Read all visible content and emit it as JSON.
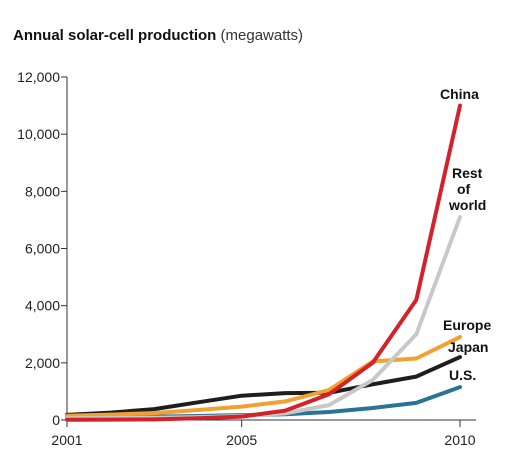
{
  "chart_data": {
    "type": "line",
    "title": "Annual solar-cell production",
    "title_unit": "(megawatts)",
    "x": [
      2001,
      2002,
      2003,
      2004,
      2005,
      2006,
      2007,
      2008,
      2009,
      2010
    ],
    "xticks": [
      "2001",
      "2005",
      "2010"
    ],
    "yticks": [
      "0",
      "2,000",
      "4,000",
      "6,000",
      "8,000",
      "10,000",
      "12,000"
    ],
    "ylim": [
      0,
      12000
    ],
    "xlim": [
      2001,
      2010
    ],
    "grid": false,
    "series": [
      {
        "name": "U.S.",
        "color": "#2a7396",
        "values": [
          100,
          110,
          120,
          140,
          170,
          200,
          280,
          420,
          600,
          1150
        ]
      },
      {
        "name": "Japan",
        "color": "#1e1e1e",
        "values": [
          180,
          260,
          380,
          620,
          850,
          940,
          950,
          1250,
          1520,
          2200
        ]
      },
      {
        "name": "Europe",
        "color": "#f2a030",
        "values": [
          150,
          190,
          240,
          350,
          470,
          650,
          1050,
          2050,
          2150,
          2900
        ]
      },
      {
        "name": "Rest of world",
        "label_lines": [
          "Rest",
          "of",
          "world"
        ],
        "color": "#c8c8c8",
        "values": [
          60,
          70,
          80,
          100,
          140,
          230,
          520,
          1400,
          3000,
          7100
        ]
      },
      {
        "name": "China",
        "color": "#d2232a",
        "values": [
          10,
          15,
          20,
          60,
          120,
          330,
          900,
          2000,
          4200,
          11000
        ]
      }
    ]
  }
}
